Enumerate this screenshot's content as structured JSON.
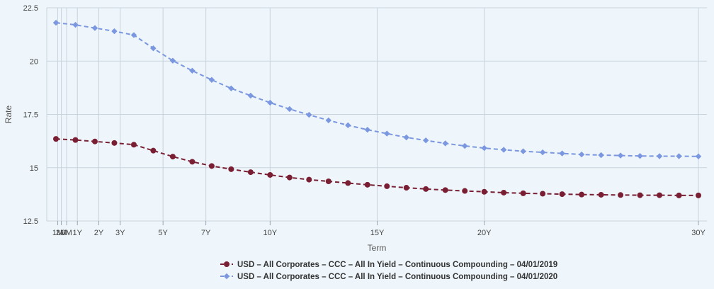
{
  "chart_data": {
    "type": "line",
    "xlabel": "Term",
    "ylabel": "Rate",
    "ylim": [
      12.5,
      22.5
    ],
    "y_ticks": [
      "12.5",
      "15",
      "17.5",
      "20",
      "22.5"
    ],
    "x_range_years": [
      0,
      30
    ],
    "x_ticks": [
      {
        "label": "1M",
        "years": 0.0833
      },
      {
        "label": "3M",
        "years": 0.25
      },
      {
        "label": "6M",
        "years": 0.5
      },
      {
        "label": "1Y",
        "years": 1
      },
      {
        "label": "2Y",
        "years": 2
      },
      {
        "label": "3Y",
        "years": 3
      },
      {
        "label": "5Y",
        "years": 5
      },
      {
        "label": "7Y",
        "years": 7
      },
      {
        "label": "10Y",
        "years": 10
      },
      {
        "label": "15Y",
        "years": 15
      },
      {
        "label": "20Y",
        "years": 20
      },
      {
        "label": "30Y",
        "years": 30
      }
    ],
    "grid": true,
    "legend_position": "bottom-center",
    "x": [
      0.0833,
      1,
      2,
      3,
      4,
      5,
      6,
      7,
      8,
      9,
      10,
      11,
      12,
      13,
      14,
      15,
      16,
      17,
      18,
      19,
      20,
      21,
      22,
      23,
      24,
      25,
      26,
      27,
      28,
      29,
      30,
      31,
      32,
      33
    ],
    "series": [
      {
        "name": "USD – All Corporates – CCC – All In Yield – Continuous Compounding – 04/01/2019",
        "color": "#7a1f33",
        "marker": "circle",
        "values": [
          16.35,
          16.3,
          16.23,
          16.16,
          16.08,
          15.8,
          15.52,
          15.28,
          15.08,
          14.93,
          14.79,
          14.66,
          14.54,
          14.44,
          14.36,
          14.28,
          14.2,
          14.13,
          14.06,
          14.0,
          13.95,
          13.91,
          13.87,
          13.83,
          13.8,
          13.78,
          13.76,
          13.74,
          13.73,
          13.72,
          13.71,
          13.71,
          13.7,
          13.7
        ]
      },
      {
        "name": "USD – All Corporates – CCC – All In Yield – Continuous Compounding – 04/01/2020",
        "color": "#7b97e0",
        "marker": "diamond",
        "values": [
          21.8,
          21.7,
          21.55,
          21.4,
          21.22,
          20.6,
          20.02,
          19.55,
          19.12,
          18.72,
          18.38,
          18.05,
          17.75,
          17.48,
          17.22,
          16.99,
          16.78,
          16.6,
          16.42,
          16.28,
          16.14,
          16.02,
          15.92,
          15.84,
          15.77,
          15.72,
          15.67,
          15.62,
          15.59,
          15.57,
          15.55,
          15.54,
          15.54,
          15.53
        ]
      }
    ]
  }
}
